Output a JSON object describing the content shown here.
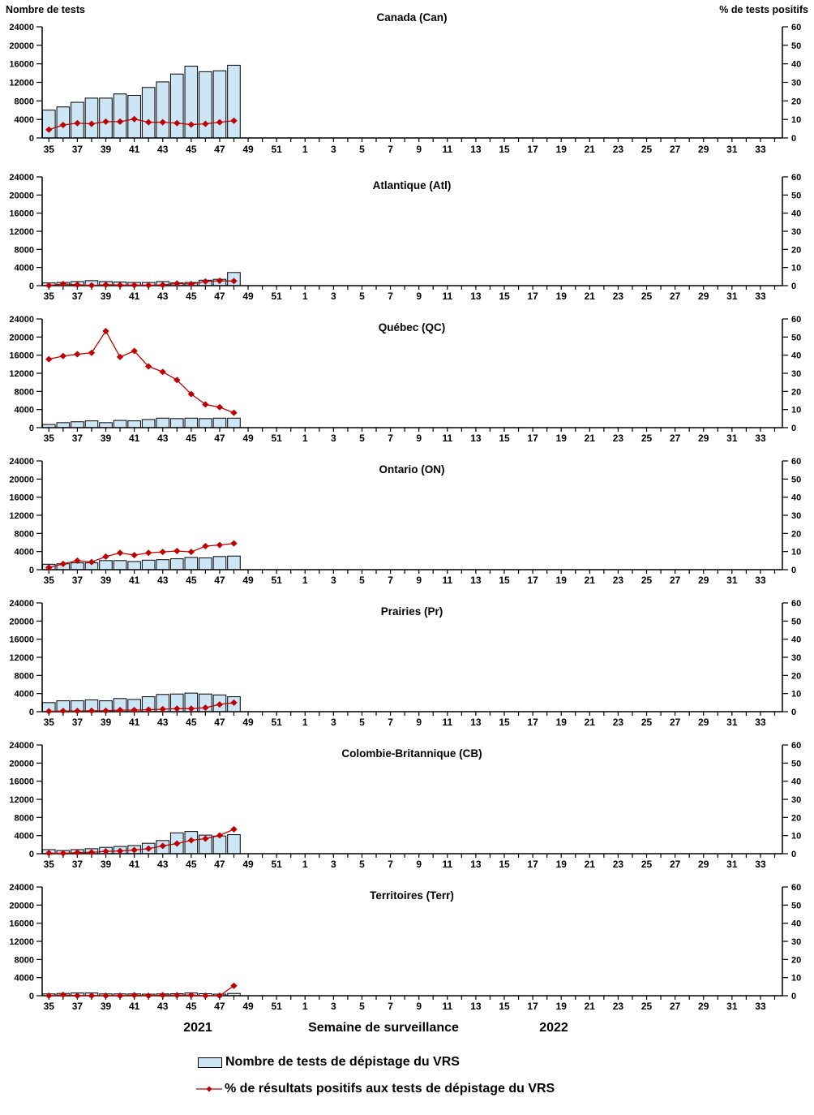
{
  "page": {
    "left_axis_title": "Nombre de tests",
    "right_axis_title": "% de tests positifs",
    "x_axis_title": "Semaine de surveillance",
    "year_left": "2021",
    "year_right": "2022",
    "legend": [
      {
        "type": "bar",
        "label": "Nombre de tests de dépistage du VRS"
      },
      {
        "type": "line",
        "label": "% de résultats positifs aux tests de dépistage du VRS"
      }
    ],
    "colors": {
      "bar_fill": "#CDE6F6",
      "bar_border": "#000000",
      "line": "#C00000",
      "text": "#000000"
    }
  },
  "axes": {
    "x_tick_labels": [
      "35",
      "37",
      "39",
      "41",
      "43",
      "45",
      "47",
      "49",
      "51",
      "1",
      "3",
      "5",
      "7",
      "9",
      "11",
      "13",
      "15",
      "17",
      "19",
      "21",
      "23",
      "25",
      "27",
      "29",
      "31",
      "33"
    ],
    "left_axis_ticks": [
      "0",
      "4000",
      "8000",
      "12000",
      "16000",
      "20000",
      "24000"
    ],
    "right_axis_ticks": [
      "0",
      "10",
      "20",
      "30",
      "40",
      "50",
      "60"
    ],
    "left_ylim": [
      0,
      24000
    ],
    "right_ylim": [
      0,
      60
    ],
    "grid": "off",
    "legend_position": "bottom"
  },
  "chart_data": [
    {
      "type": "bar+line",
      "id": "canada",
      "title": "Canada (Can)",
      "weeks": [
        35,
        36,
        37,
        38,
        39,
        40,
        41,
        42,
        43,
        44,
        45,
        46,
        47,
        48
      ],
      "tests": [
        6000,
        6700,
        7700,
        8600,
        8600,
        9500,
        9200,
        10900,
        12100,
        13800,
        15500,
        14300,
        14500,
        15700
      ],
      "pct_positive": [
        4.5,
        7.0,
        8.0,
        7.6,
        8.8,
        8.8,
        10.2,
        8.5,
        8.5,
        8.0,
        7.2,
        7.6,
        8.5,
        9.3
      ]
    },
    {
      "type": "bar+line",
      "id": "atlantique",
      "title": "Atlantique (Atl)",
      "weeks": [
        35,
        36,
        37,
        38,
        39,
        40,
        41,
        42,
        43,
        44,
        45,
        46,
        47,
        48
      ],
      "tests": [
        600,
        700,
        900,
        1100,
        900,
        800,
        700,
        700,
        900,
        600,
        700,
        1200,
        1400,
        2900
      ],
      "pct_positive": [
        0.1,
        0.9,
        0.5,
        0.1,
        0.5,
        0.3,
        0.3,
        0.2,
        0.4,
        1.2,
        0.9,
        2.3,
        2.7,
        2.5
      ]
    },
    {
      "type": "bar+line",
      "id": "quebec",
      "title": "Québec (QC)",
      "weeks": [
        35,
        36,
        37,
        38,
        39,
        40,
        41,
        42,
        43,
        44,
        45,
        46,
        47,
        48
      ],
      "tests": [
        700,
        1100,
        1300,
        1500,
        1100,
        1600,
        1500,
        1800,
        2100,
        2000,
        2100,
        2000,
        2100,
        2100
      ],
      "pct_positive": [
        37.8,
        39.5,
        40.5,
        41.3,
        53.3,
        39.0,
        42.3,
        33.8,
        30.8,
        26.3,
        18.5,
        12.8,
        11.3,
        8.2
      ]
    },
    {
      "type": "bar+line",
      "id": "ontario",
      "title": "Ontario (ON)",
      "weeks": [
        35,
        36,
        37,
        38,
        39,
        40,
        41,
        42,
        43,
        44,
        45,
        46,
        47,
        48
      ],
      "tests": [
        1200,
        1300,
        1500,
        1500,
        2000,
        2000,
        1800,
        2100,
        2200,
        2400,
        2700,
        2600,
        2900,
        3000
      ],
      "pct_positive": [
        1.2,
        3.2,
        5.0,
        4.2,
        7.2,
        9.3,
        8.0,
        9.3,
        9.8,
        10.3,
        9.8,
        13.0,
        13.6,
        14.5
      ]
    },
    {
      "type": "bar+line",
      "id": "prairies",
      "title": "Prairies (Pr)",
      "weeks": [
        35,
        36,
        37,
        38,
        39,
        40,
        41,
        42,
        43,
        44,
        45,
        46,
        47,
        48
      ],
      "tests": [
        2000,
        2400,
        2400,
        2600,
        2400,
        2900,
        2700,
        3300,
        3800,
        3900,
        4100,
        3900,
        3700,
        3300
      ],
      "pct_positive": [
        0.2,
        0.4,
        0.4,
        0.5,
        0.5,
        0.9,
        0.9,
        1.1,
        1.4,
        1.7,
        1.7,
        2.2,
        4.0,
        5.0
      ]
    },
    {
      "type": "bar+line",
      "id": "colombie-britannique",
      "title": "Colombie-Britannique (CB)",
      "weeks": [
        35,
        36,
        37,
        38,
        39,
        40,
        41,
        42,
        43,
        44,
        45,
        46,
        47,
        48
      ],
      "tests": [
        900,
        700,
        900,
        1100,
        1400,
        1600,
        1800,
        2300,
        2900,
        4600,
        4900,
        4100,
        3900,
        4200
      ],
      "pct_positive": [
        0.3,
        0.2,
        0.6,
        0.8,
        1.3,
        1.5,
        2.0,
        2.8,
        4.3,
        5.6,
        7.4,
        8.3,
        10.1,
        13.5
      ]
    },
    {
      "type": "bar+line",
      "id": "territoires",
      "title": "Territoires (Terr)",
      "weeks": [
        35,
        36,
        37,
        38,
        39,
        40,
        41,
        42,
        43,
        44,
        45,
        46,
        47,
        48
      ],
      "tests": [
        400,
        500,
        600,
        600,
        400,
        400,
        400,
        350,
        400,
        450,
        600,
        450,
        350,
        500
      ],
      "pct_positive": [
        0.0,
        0.5,
        0.0,
        0.0,
        0.0,
        0.0,
        0.3,
        0.0,
        0.3,
        0.3,
        0.3,
        0.0,
        0.0,
        5.5
      ]
    }
  ]
}
